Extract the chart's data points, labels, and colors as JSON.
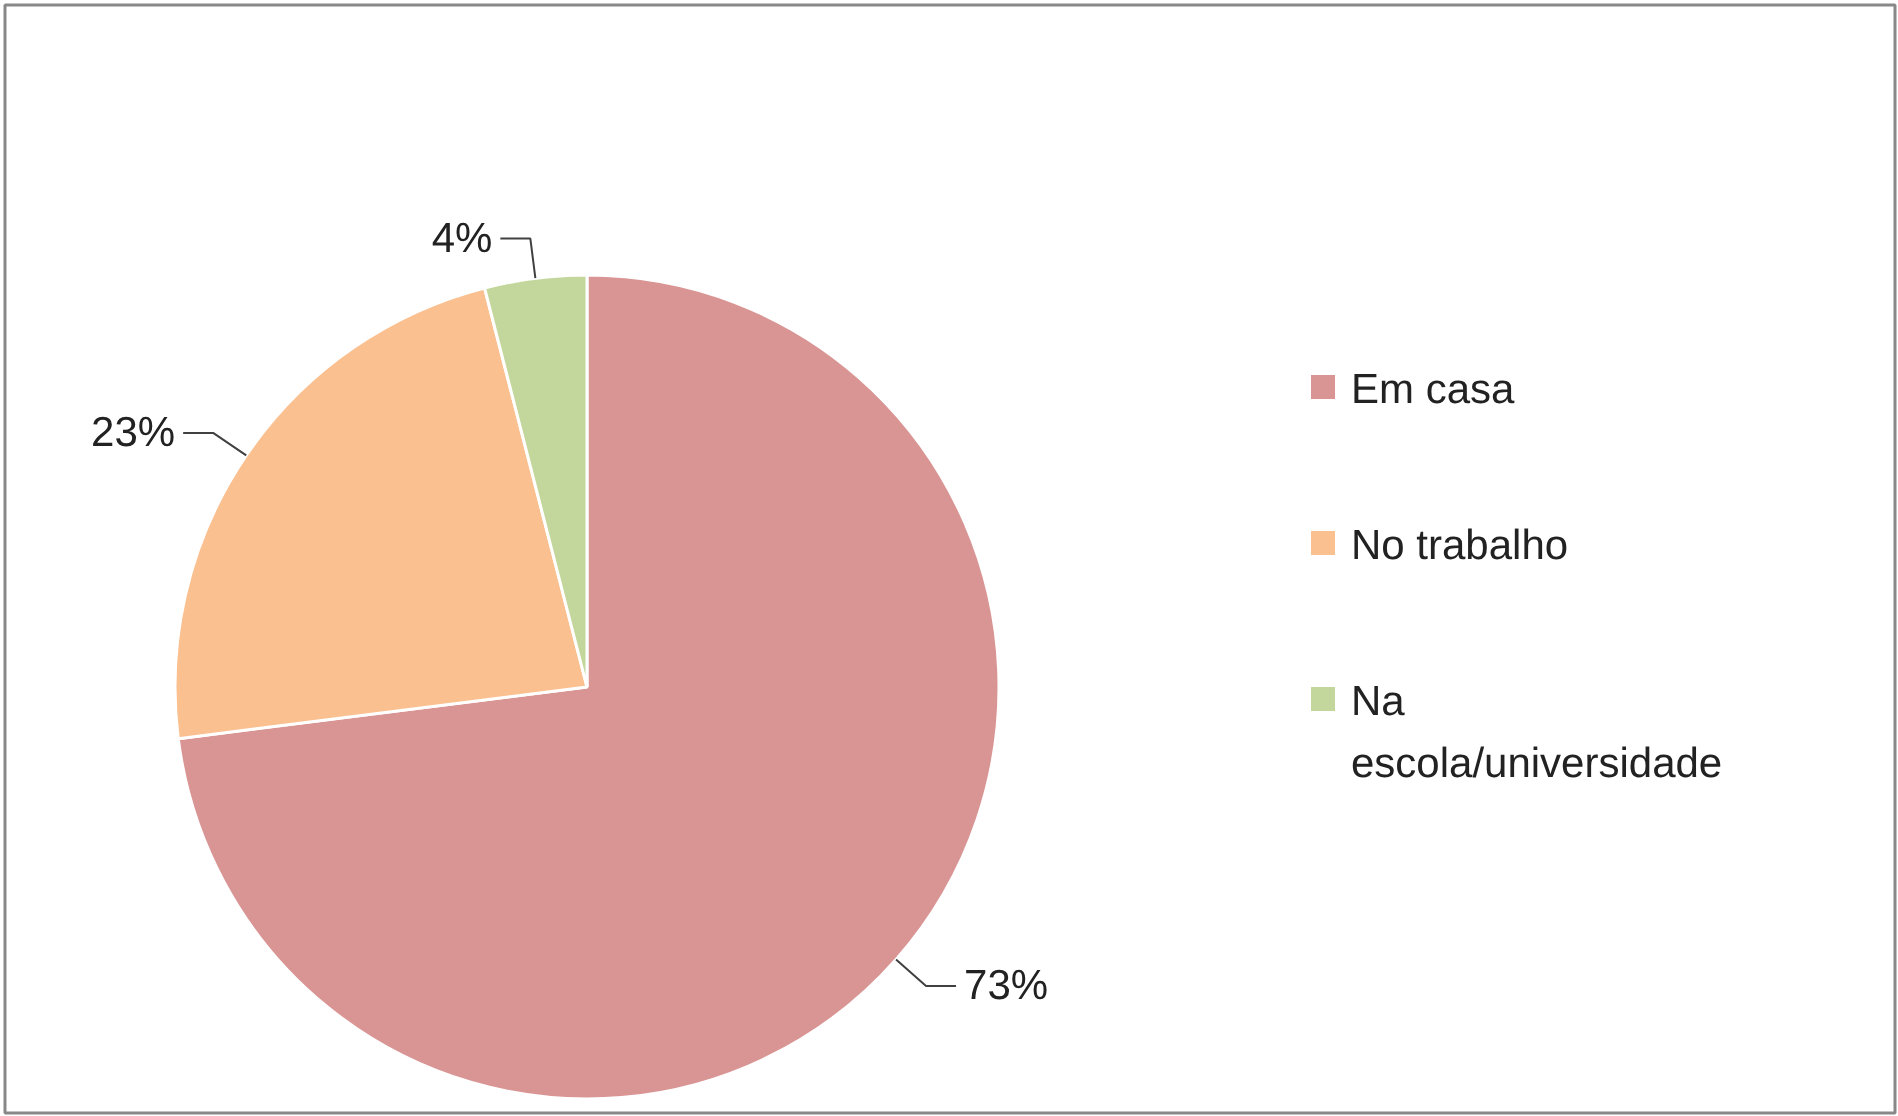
{
  "chart_data": {
    "type": "pie",
    "categories": [
      "Em casa",
      "No trabalho",
      "Na escola/universidade"
    ],
    "values": [
      73,
      23,
      4
    ],
    "colors": [
      "#d99594",
      "#fac090",
      "#c3d69b"
    ],
    "value_labels": [
      "73%",
      "23%",
      "4%"
    ],
    "legend": "right"
  }
}
